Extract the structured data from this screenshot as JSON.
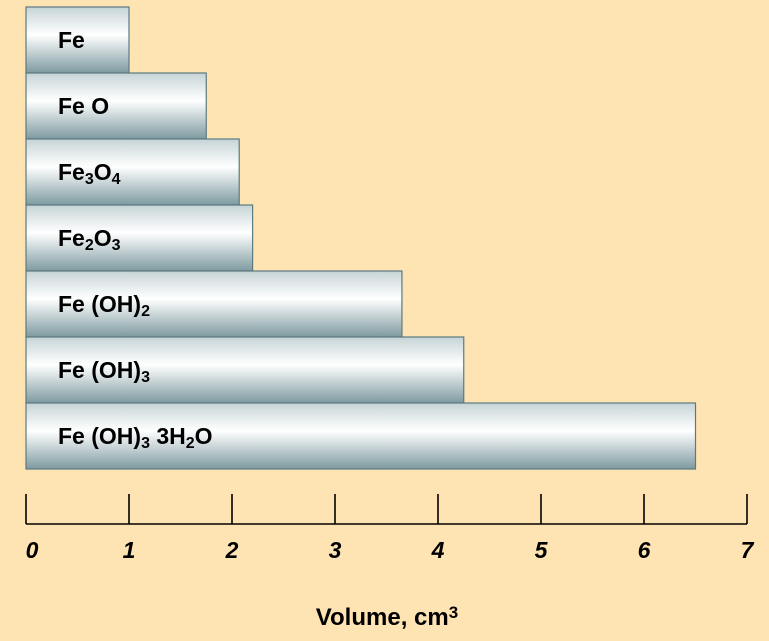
{
  "chart_data": {
    "type": "bar",
    "orientation": "horizontal",
    "categories": [
      {
        "id": "fe",
        "label": [
          {
            "t": "Fe"
          }
        ]
      },
      {
        "id": "feo",
        "label": [
          {
            "t": "Fe O"
          }
        ]
      },
      {
        "id": "fe3o4",
        "label": [
          {
            "t": "Fe"
          },
          {
            "t": "3",
            "sub": true
          },
          {
            "t": "O"
          },
          {
            "t": "4",
            "sub": true
          }
        ]
      },
      {
        "id": "fe2o3",
        "label": [
          {
            "t": "Fe"
          },
          {
            "t": "2",
            "sub": true
          },
          {
            "t": "O"
          },
          {
            "t": "3",
            "sub": true
          }
        ]
      },
      {
        "id": "feoh2",
        "label": [
          {
            "t": "Fe (OH)"
          },
          {
            "t": "2",
            "sub": true
          }
        ]
      },
      {
        "id": "feoh3",
        "label": [
          {
            "t": "Fe (OH)"
          },
          {
            "t": "3",
            "sub": true
          }
        ]
      },
      {
        "id": "feoh3-3h2o",
        "label": [
          {
            "t": "Fe (OH)"
          },
          {
            "t": "3",
            "sub": true
          },
          {
            "t": " 3H"
          },
          {
            "t": "2",
            "sub": true
          },
          {
            "t": "O"
          }
        ]
      }
    ],
    "values": [
      1.0,
      1.75,
      2.07,
      2.2,
      3.65,
      4.25,
      6.5
    ],
    "xlim": [
      0,
      7
    ],
    "xticks": [
      "0",
      "1",
      "2",
      "3",
      "4",
      "5",
      "6",
      "7"
    ],
    "xlabel": [
      {
        "t": "Volume, cm"
      },
      {
        "t": "3",
        "sup": true
      }
    ],
    "title": "",
    "grid": false,
    "legend": "none",
    "colors": {
      "background": "#ffe4b3",
      "bar_edge": "#5a7a80",
      "bar_top": "#c6d4d6",
      "bar_highlight": "#ffffff",
      "bar_bottom": "#7e9aa0",
      "axis": "#000000"
    }
  }
}
